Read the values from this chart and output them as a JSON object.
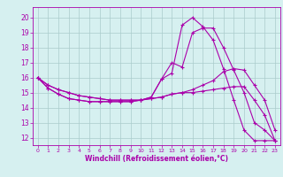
{
  "xlabel": "Windchill (Refroidissement éolien,°C)",
  "xlim": [
    -0.5,
    23.5
  ],
  "ylim": [
    11.5,
    20.7
  ],
  "xticks": [
    0,
    1,
    2,
    3,
    4,
    5,
    6,
    7,
    8,
    9,
    10,
    11,
    12,
    13,
    14,
    15,
    16,
    17,
    18,
    19,
    20,
    21,
    22,
    23
  ],
  "yticks": [
    12,
    13,
    14,
    15,
    16,
    17,
    18,
    19,
    20
  ],
  "bg_color": "#d6f0f0",
  "line_color": "#aa00aa",
  "grid_color": "#aacccc",
  "line1_x": [
    0,
    1,
    2,
    3,
    4,
    5,
    6,
    7,
    8,
    9,
    10,
    11,
    12,
    13,
    14,
    15,
    16,
    17,
    18,
    19,
    20,
    21,
    22,
    23
  ],
  "line1_y": [
    16.0,
    15.3,
    14.9,
    14.6,
    14.5,
    14.4,
    14.4,
    14.4,
    14.4,
    14.4,
    14.5,
    14.7,
    15.9,
    17.0,
    16.7,
    19.0,
    19.3,
    19.3,
    18.0,
    16.5,
    15.0,
    13.0,
    12.5,
    11.8
  ],
  "line2_x": [
    0,
    1,
    2,
    3,
    4,
    5,
    6,
    7,
    8,
    9,
    10,
    11,
    12,
    13,
    14,
    15,
    16,
    17,
    18,
    19,
    20,
    21,
    22,
    23
  ],
  "line2_y": [
    16.0,
    15.3,
    14.9,
    14.6,
    14.5,
    14.4,
    14.4,
    14.4,
    14.4,
    14.4,
    14.5,
    14.7,
    15.9,
    16.3,
    19.5,
    20.0,
    19.4,
    18.5,
    16.6,
    14.5,
    12.5,
    11.8,
    11.8,
    11.8
  ],
  "line3_x": [
    0,
    1,
    2,
    3,
    4,
    5,
    6,
    7,
    8,
    9,
    10,
    11,
    12,
    13,
    14,
    15,
    16,
    17,
    18,
    19,
    20,
    21,
    22,
    23
  ],
  "line3_y": [
    16.0,
    15.5,
    15.2,
    15.0,
    14.8,
    14.7,
    14.6,
    14.5,
    14.5,
    14.5,
    14.5,
    14.6,
    14.7,
    14.9,
    15.0,
    15.2,
    15.5,
    15.8,
    16.4,
    16.6,
    16.5,
    15.5,
    14.5,
    12.5
  ],
  "line4_x": [
    0,
    1,
    2,
    3,
    4,
    5,
    6,
    7,
    8,
    9,
    10,
    11,
    12,
    13,
    14,
    15,
    16,
    17,
    18,
    19,
    20,
    21,
    22,
    23
  ],
  "line4_y": [
    16.0,
    15.5,
    15.2,
    15.0,
    14.8,
    14.7,
    14.6,
    14.5,
    14.5,
    14.5,
    14.5,
    14.6,
    14.7,
    14.9,
    15.0,
    15.0,
    15.1,
    15.2,
    15.3,
    15.4,
    15.4,
    14.5,
    13.5,
    11.8
  ]
}
